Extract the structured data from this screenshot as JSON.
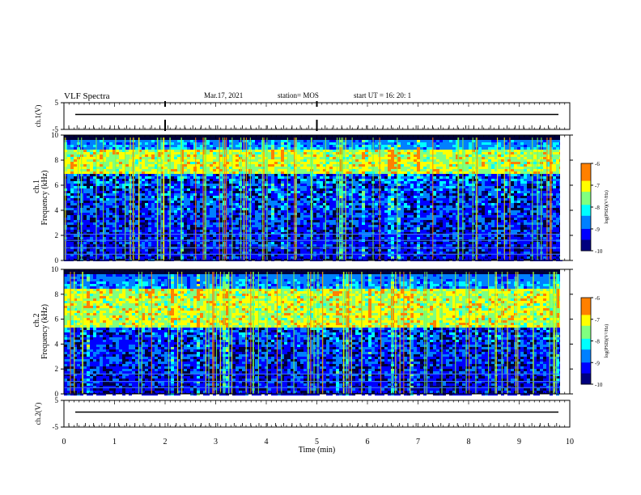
{
  "header": {
    "title": "VLF Spectra",
    "date": "Mar.17, 2021",
    "station": "station= MOS",
    "start": "start UT =   16: 20: 1"
  },
  "chart_data": {
    "type": "heatmap",
    "xlabel": "Time (min)",
    "xlim": [
      0,
      10
    ],
    "xticks": [
      "0",
      "1",
      "2",
      "3",
      "4",
      "5",
      "6",
      "7",
      "8",
      "9",
      "10"
    ],
    "panels": [
      {
        "id": "ch1-waveform",
        "type": "line",
        "ylabel": "ch.1(V)",
        "ylim": [
          -5,
          5
        ],
        "yticks": [
          "5",
          "-5"
        ],
        "signal_level": 0,
        "marks_min": [
          2.0,
          5.0
        ]
      },
      {
        "id": "ch1-spectrogram",
        "type": "heatmap",
        "ylabel_top": "ch.1",
        "ylabel": "Frequency (kHz)",
        "ylim": [
          0,
          10
        ],
        "yticks": [
          "0",
          "2",
          "4",
          "6",
          "8",
          "10"
        ],
        "hot_band_khz": [
          7,
          9
        ],
        "noise_lines_khz": [
          0.5,
          1.0,
          1.6,
          2.1
        ],
        "colorbar": {
          "label": "log(PSD)(V²/Hz)",
          "range": [
            -10,
            -6
          ],
          "ticks": [
            "-6",
            "-7",
            "-8",
            "-9",
            "-10"
          ]
        }
      },
      {
        "id": "ch2-spectrogram",
        "type": "heatmap",
        "ylabel_top": "ch.2",
        "ylabel": "Frequency (kHz)",
        "ylim": [
          0,
          10
        ],
        "yticks": [
          "0",
          "2",
          "4",
          "6",
          "8",
          "10"
        ],
        "hot_band_khz": [
          5.5,
          8.5
        ],
        "noise_lines_khz": [
          0.5,
          1.0,
          1.6
        ],
        "colorbar": {
          "label": "log(PSD)(V²/Hz)",
          "range": [
            -10,
            -6
          ],
          "ticks": [
            "-6",
            "-7",
            "-8",
            "-9",
            "-10"
          ]
        }
      },
      {
        "id": "ch2-waveform",
        "type": "line",
        "ylabel": "ch.2(V)",
        "ylim": [
          -5,
          5
        ],
        "yticks": [
          "5",
          "-5"
        ],
        "signal_level": 0
      }
    ],
    "colors": {
      "colormap": [
        "#00007f",
        "#0000ff",
        "#0080ff",
        "#00ffff",
        "#80ff80",
        "#ffff00",
        "#ff8000",
        "#ff0000",
        "#ffffff"
      ]
    }
  }
}
